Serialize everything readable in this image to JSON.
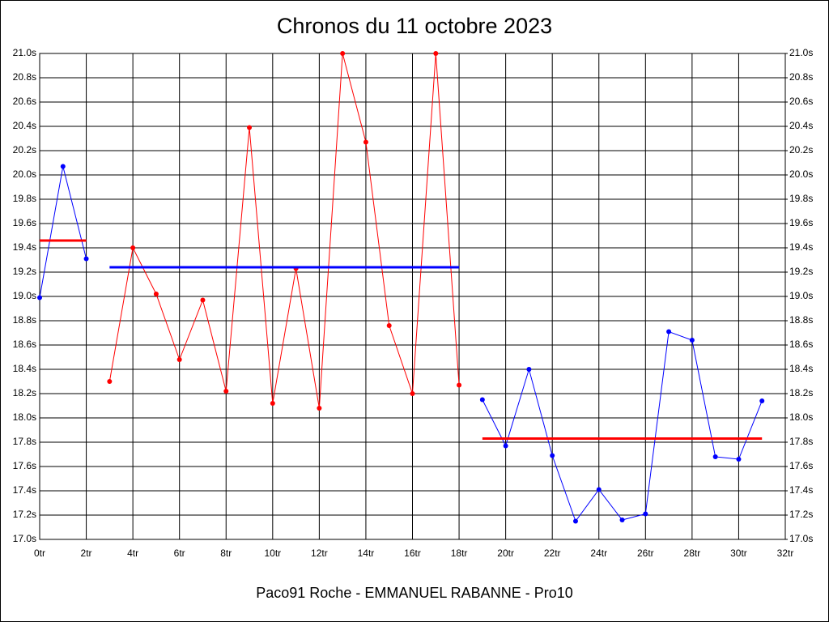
{
  "chart_data": {
    "type": "line",
    "title": "Chronos du 11 octobre 2023",
    "xlabel": "Paco91 Roche - EMMANUEL RABANNE - Pro10",
    "xlim": [
      0,
      32
    ],
    "xticks": [
      {
        "value": 0,
        "label": "0tr"
      },
      {
        "value": 2,
        "label": "2tr"
      },
      {
        "value": 4,
        "label": "4tr"
      },
      {
        "value": 6,
        "label": "6tr"
      },
      {
        "value": 8,
        "label": "8tr"
      },
      {
        "value": 10,
        "label": "10tr"
      },
      {
        "value": 12,
        "label": "12tr"
      },
      {
        "value": 14,
        "label": "14tr"
      },
      {
        "value": 16,
        "label": "16tr"
      },
      {
        "value": 18,
        "label": "18tr"
      },
      {
        "value": 20,
        "label": "20tr"
      },
      {
        "value": 22,
        "label": "22tr"
      },
      {
        "value": 24,
        "label": "24tr"
      },
      {
        "value": 26,
        "label": "26tr"
      },
      {
        "value": 28,
        "label": "28tr"
      },
      {
        "value": 30,
        "label": "30tr"
      },
      {
        "value": 32,
        "label": "32tr"
      }
    ],
    "ylim": [
      17.0,
      21.0
    ],
    "yticks": [
      {
        "value": 17.0,
        "label": "17.0s"
      },
      {
        "value": 17.2,
        "label": "17.2s"
      },
      {
        "value": 17.4,
        "label": "17.4s"
      },
      {
        "value": 17.6,
        "label": "17.6s"
      },
      {
        "value": 17.8,
        "label": "17.8s"
      },
      {
        "value": 18.0,
        "label": "18.0s"
      },
      {
        "value": 18.2,
        "label": "18.2s"
      },
      {
        "value": 18.4,
        "label": "18.4s"
      },
      {
        "value": 18.6,
        "label": "18.6s"
      },
      {
        "value": 18.8,
        "label": "18.8s"
      },
      {
        "value": 19.0,
        "label": "19.0s"
      },
      {
        "value": 19.2,
        "label": "19.2s"
      },
      {
        "value": 19.4,
        "label": "19.4s"
      },
      {
        "value": 19.6,
        "label": "19.6s"
      },
      {
        "value": 19.8,
        "label": "19.8s"
      },
      {
        "value": 20.0,
        "label": "20.0s"
      },
      {
        "value": 20.2,
        "label": "20.2s"
      },
      {
        "value": 20.4,
        "label": "20.4s"
      },
      {
        "value": 20.6,
        "label": "20.6s"
      },
      {
        "value": 20.8,
        "label": "20.8s"
      },
      {
        "value": 21.0,
        "label": "21.0s"
      }
    ],
    "y2lim": [
      17.0,
      21.0
    ],
    "y2ticks": [
      {
        "value": 17.0,
        "label": "17.0s"
      },
      {
        "value": 17.2,
        "label": "17.2s"
      },
      {
        "value": 17.4,
        "label": "17.4s"
      },
      {
        "value": 17.6,
        "label": "17.6s"
      },
      {
        "value": 17.8,
        "label": "17.8s"
      },
      {
        "value": 18.0,
        "label": "18.0s"
      },
      {
        "value": 18.2,
        "label": "18.2s"
      },
      {
        "value": 18.4,
        "label": "18.4s"
      },
      {
        "value": 18.6,
        "label": "18.6s"
      },
      {
        "value": 18.8,
        "label": "18.8s"
      },
      {
        "value": 19.0,
        "label": "19.0s"
      },
      {
        "value": 19.2,
        "label": "19.2s"
      },
      {
        "value": 19.4,
        "label": "19.4s"
      },
      {
        "value": 19.6,
        "label": "19.6s"
      },
      {
        "value": 19.8,
        "label": "19.8s"
      },
      {
        "value": 20.0,
        "label": "20.0s"
      },
      {
        "value": 20.2,
        "label": "20.2s"
      },
      {
        "value": 20.4,
        "label": "20.4s"
      },
      {
        "value": 20.6,
        "label": "20.6s"
      },
      {
        "value": 20.8,
        "label": "20.8s"
      },
      {
        "value": 21.0,
        "label": "21.0s"
      }
    ],
    "grid": true,
    "series": [
      {
        "color": "#0000ff",
        "markers": true,
        "x": [
          0,
          1,
          2
        ],
        "values": [
          18.99,
          20.07,
          19.31
        ]
      },
      {
        "color": "#ff0000",
        "markers": true,
        "x": [
          3,
          4,
          5,
          6,
          7,
          8,
          9,
          10,
          11,
          12,
          13,
          14,
          15,
          16,
          17,
          18
        ],
        "values": [
          18.3,
          19.4,
          19.02,
          18.48,
          18.97,
          18.22,
          20.39,
          18.12,
          19.23,
          18.08,
          21.0,
          20.27,
          18.76,
          18.2,
          21.0,
          18.27
        ]
      },
      {
        "color": "#0000ff",
        "markers": true,
        "x": [
          19,
          20,
          21,
          22,
          23,
          24,
          25,
          26,
          27,
          28,
          29,
          30,
          31
        ],
        "values": [
          18.15,
          17.77,
          18.4,
          17.69,
          17.15,
          17.41,
          17.16,
          17.21,
          18.71,
          18.64,
          17.68,
          17.66,
          18.14
        ]
      },
      {
        "color": "#ff0000",
        "markers": false,
        "x": [
          0,
          2
        ],
        "values": [
          19.46,
          19.46
        ]
      },
      {
        "color": "#0000ff",
        "markers": false,
        "x": [
          3,
          18
        ],
        "values": [
          19.24,
          19.24
        ]
      },
      {
        "color": "#ff0000",
        "markers": false,
        "x": [
          19,
          31
        ],
        "values": [
          17.83,
          17.83
        ]
      }
    ]
  }
}
